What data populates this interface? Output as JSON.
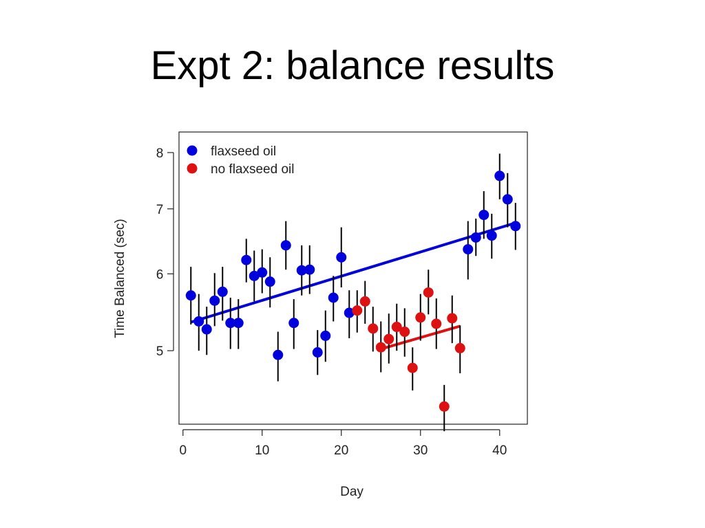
{
  "slide": {
    "title": "Expt 2: balance results"
  },
  "chart_data": {
    "type": "scatter",
    "xlabel": "Day",
    "ylabel": "Time Balanced (sec)",
    "xlim": [
      -0.5,
      43.5
    ],
    "ylim": [
      4.2,
      8.4
    ],
    "y_scale": "log",
    "x_ticks": [
      0,
      10,
      20,
      30,
      40
    ],
    "y_ticks": [
      5,
      6,
      7,
      8
    ],
    "grid": false,
    "legend_position": "top-left",
    "error_bars": true,
    "series": [
      {
        "name": "flaxseed oil",
        "color": "#0000dd",
        "points": [
          {
            "x": 1,
            "y": 5.7,
            "lo": 5.32,
            "hi": 6.1
          },
          {
            "x": 2,
            "y": 5.36,
            "lo": 5.0,
            "hi": 5.72
          },
          {
            "x": 3,
            "y": 5.26,
            "lo": 4.95,
            "hi": 5.55
          },
          {
            "x": 4,
            "y": 5.63,
            "lo": 5.3,
            "hi": 6.01
          },
          {
            "x": 5,
            "y": 5.75,
            "lo": 5.37,
            "hi": 6.1
          },
          {
            "x": 6,
            "y": 5.34,
            "lo": 5.02,
            "hi": 5.67
          },
          {
            "x": 7,
            "y": 5.34,
            "lo": 5.02,
            "hi": 5.65
          },
          {
            "x": 8,
            "y": 6.2,
            "lo": 5.88,
            "hi": 6.52
          },
          {
            "x": 9,
            "y": 5.97,
            "lo": 5.62,
            "hi": 6.34
          },
          {
            "x": 10,
            "y": 6.02,
            "lo": 5.73,
            "hi": 6.36
          },
          {
            "x": 11,
            "y": 5.89,
            "lo": 5.54,
            "hi": 6.24
          },
          {
            "x": 12,
            "y": 4.95,
            "lo": 4.65,
            "hi": 5.23
          },
          {
            "x": 13,
            "y": 6.42,
            "lo": 6.06,
            "hi": 6.8
          },
          {
            "x": 14,
            "y": 5.34,
            "lo": 5.02,
            "hi": 5.65
          },
          {
            "x": 15,
            "y": 6.05,
            "lo": 5.7,
            "hi": 6.42
          },
          {
            "x": 16,
            "y": 6.06,
            "lo": 5.72,
            "hi": 6.42
          },
          {
            "x": 17,
            "y": 4.98,
            "lo": 4.72,
            "hi": 5.25
          },
          {
            "x": 18,
            "y": 5.18,
            "lo": 4.87,
            "hi": 5.5
          },
          {
            "x": 19,
            "y": 5.67,
            "lo": 5.36,
            "hi": 5.97
          },
          {
            "x": 20,
            "y": 6.24,
            "lo": 5.81,
            "hi": 6.7
          },
          {
            "x": 21,
            "y": 5.47,
            "lo": 5.15,
            "hi": 5.77
          }
        ],
        "trend": {
          "x": [
            1,
            42
          ],
          "y": [
            5.35,
            6.77
          ]
        }
      },
      {
        "name": "no flaxseed oil",
        "color": "#dd1111",
        "points": [
          {
            "x": 22,
            "y": 5.5,
            "lo": 5.22,
            "hi": 5.77
          },
          {
            "x": 23,
            "y": 5.62,
            "lo": 5.33,
            "hi": 5.9
          },
          {
            "x": 24,
            "y": 5.27,
            "lo": 4.99,
            "hi": 5.55
          },
          {
            "x": 25,
            "y": 5.04,
            "lo": 4.75,
            "hi": 5.36
          },
          {
            "x": 26,
            "y": 5.14,
            "lo": 4.85,
            "hi": 5.46
          },
          {
            "x": 27,
            "y": 5.29,
            "lo": 5.0,
            "hi": 5.59
          },
          {
            "x": 28,
            "y": 5.23,
            "lo": 4.93,
            "hi": 5.53
          },
          {
            "x": 29,
            "y": 4.8,
            "lo": 4.55,
            "hi": 5.04
          },
          {
            "x": 30,
            "y": 5.41,
            "lo": 5.12,
            "hi": 5.72
          },
          {
            "x": 31,
            "y": 5.74,
            "lo": 5.45,
            "hi": 6.06
          },
          {
            "x": 32,
            "y": 5.33,
            "lo": 5.02,
            "hi": 5.66
          },
          {
            "x": 33,
            "y": 4.38,
            "lo": 4.13,
            "hi": 4.61
          },
          {
            "x": 34,
            "y": 5.4,
            "lo": 5.09,
            "hi": 5.7
          },
          {
            "x": 35,
            "y": 5.03,
            "lo": 4.74,
            "hi": 5.31
          }
        ],
        "trend": {
          "x": [
            25,
            35
          ],
          "y": [
            5.02,
            5.3
          ]
        }
      },
      {
        "name": "",
        "color": "#0000dd",
        "points": [
          {
            "x": 36,
            "y": 6.36,
            "lo": 5.92,
            "hi": 6.8
          },
          {
            "x": 37,
            "y": 6.54,
            "lo": 6.26,
            "hi": 6.84
          },
          {
            "x": 38,
            "y": 6.9,
            "lo": 6.52,
            "hi": 7.3
          },
          {
            "x": 39,
            "y": 6.57,
            "lo": 6.22,
            "hi": 6.92
          },
          {
            "x": 40,
            "y": 7.57,
            "lo": 7.16,
            "hi": 7.98
          },
          {
            "x": 41,
            "y": 7.16,
            "lo": 6.7,
            "hi": 7.62
          },
          {
            "x": 42,
            "y": 6.72,
            "lo": 6.35,
            "hi": 7.1
          }
        ]
      }
    ],
    "legend": [
      {
        "label": "flaxseed oil",
        "color": "#0000dd"
      },
      {
        "label": "no flaxseed oil",
        "color": "#dd1111"
      }
    ]
  }
}
